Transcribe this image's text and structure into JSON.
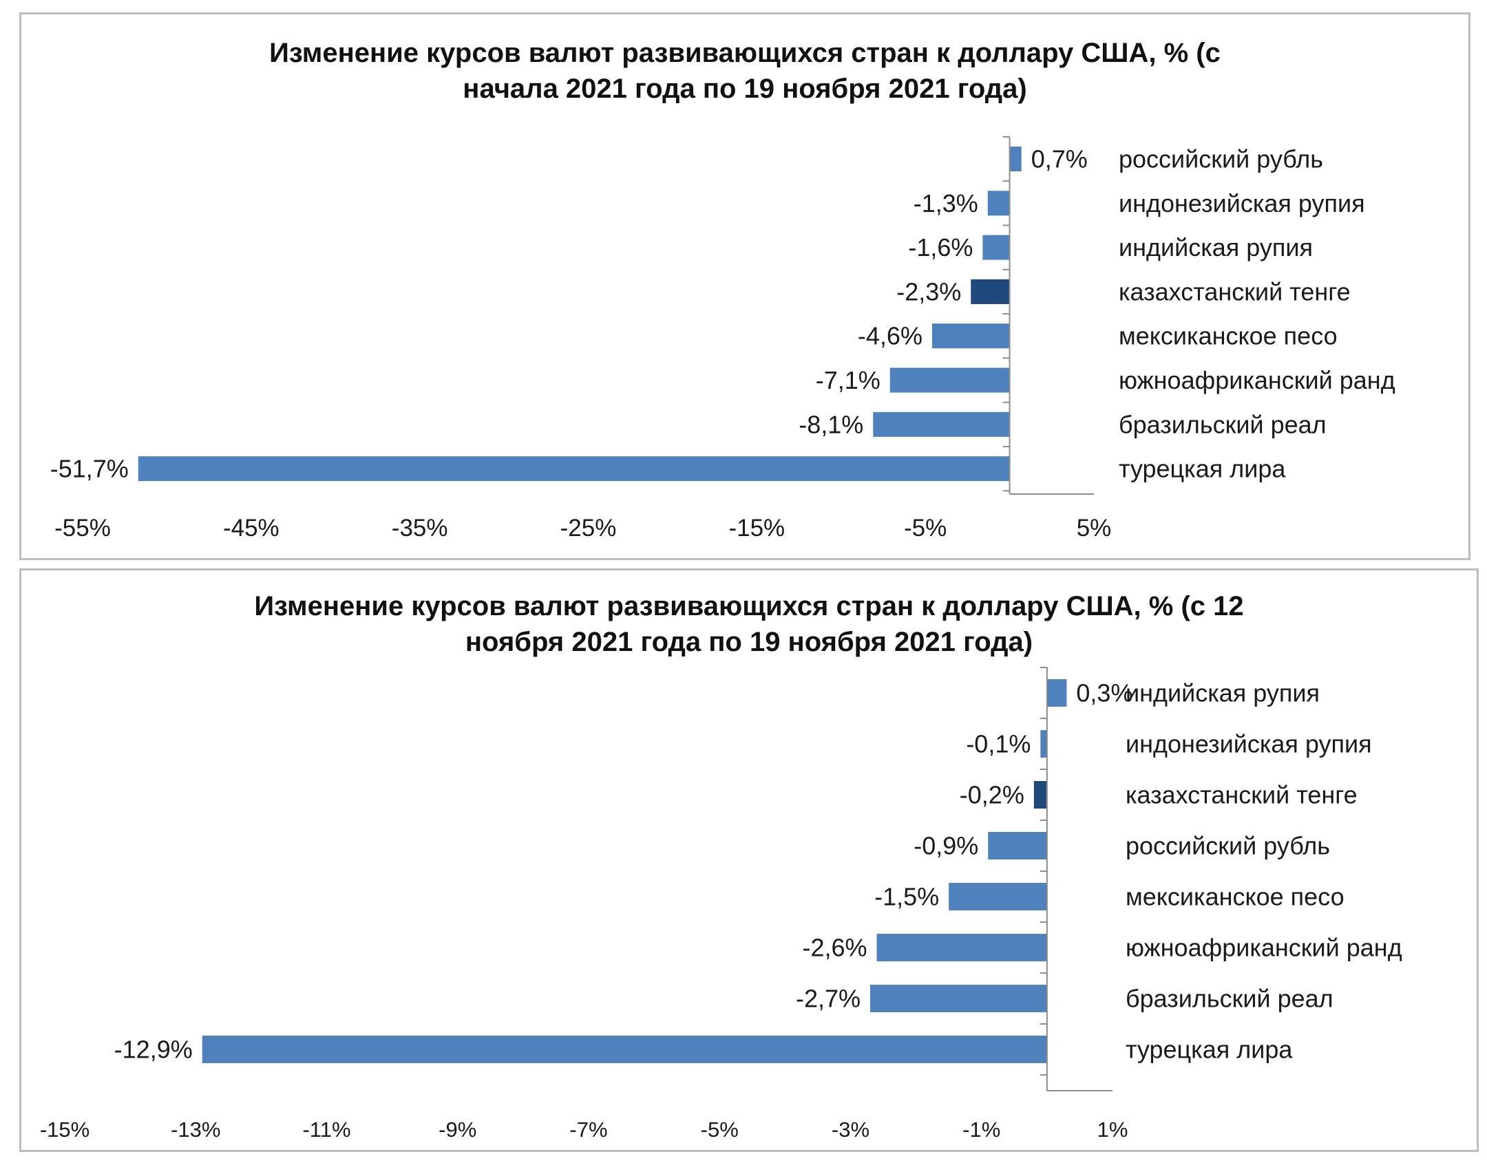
{
  "chart_data": [
    {
      "type": "bar",
      "orientation": "horizontal",
      "title": "Изменение курсов валют развивающихся стран к доллару США, % (с\nначала 2021 года по 19 ноября 2021 года)",
      "categories": [
        "российский рубль",
        "индонезийская рупия",
        "индийская рупия",
        "казахстанский тенге",
        "мексиканское песо",
        "южноафриканский ранд",
        "бразильский реал",
        "турецкая лира"
      ],
      "values": [
        0.7,
        -1.3,
        -1.6,
        -2.3,
        -4.6,
        -7.1,
        -8.1,
        -51.7
      ],
      "data_labels": [
        "0,7%",
        "-1,3%",
        "-1,6%",
        "-2,3%",
        "-4,6%",
        "-7,1%",
        "-8,1%",
        "-51,7%"
      ],
      "highlight": "казахстанский тенге",
      "xlim": [
        -55,
        5
      ],
      "xticks": [
        -55,
        -45,
        -35,
        -25,
        -15,
        -5,
        5
      ],
      "xtick_labels": [
        "-55%",
        "-45%",
        "-35%",
        "-25%",
        "-15%",
        "-5%",
        "5%"
      ],
      "colors": {
        "bar": "#4f81bd",
        "highlight": "#1f497d",
        "axis": "#8c8c8c"
      }
    },
    {
      "type": "bar",
      "orientation": "horizontal",
      "title": "Изменение курсов валют развивающихся стран к доллару США, % (с 12\nноября 2021 года по 19 ноября 2021 года)",
      "categories": [
        "индийская рупия",
        "индонезийская рупия",
        "казахстанский тенге",
        "российский рубль",
        "мексиканское песо",
        "южноафриканский ранд",
        "бразильский реал",
        "турецкая лира"
      ],
      "values": [
        0.3,
        -0.1,
        -0.2,
        -0.9,
        -1.5,
        -2.6,
        -2.7,
        -12.9
      ],
      "data_labels": [
        "0,3%",
        "-0,1%",
        "-0,2%",
        "-0,9%",
        "-1,5%",
        "-2,6%",
        "-2,7%",
        "-12,9%"
      ],
      "highlight": "казахстанский тенге",
      "xlim": [
        -15,
        1
      ],
      "xticks": [
        -15,
        -13,
        -11,
        -9,
        -7,
        -5,
        -3,
        -1,
        1
      ],
      "xtick_labels": [
        "-15%",
        "-13%",
        "-11%",
        "-9%",
        "-7%",
        "-5%",
        "-3%",
        "-1%",
        "1%"
      ],
      "colors": {
        "bar": "#4f81bd",
        "highlight": "#1f497d",
        "axis": "#8c8c8c"
      }
    }
  ]
}
